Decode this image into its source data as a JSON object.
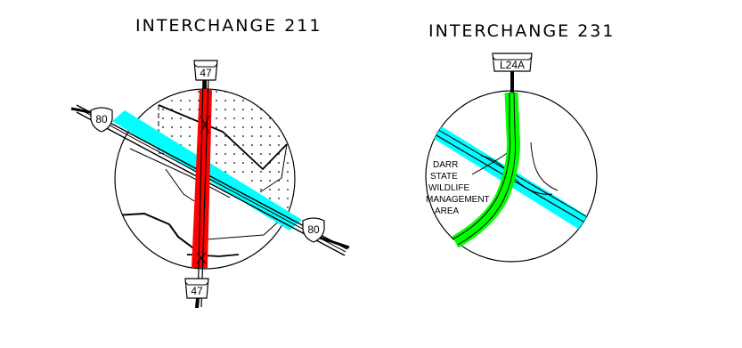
{
  "interchange_211": {
    "title": "INTERCHANGE 211",
    "route_north_label": "47",
    "route_south_label": "47",
    "interstate_west_label": "80",
    "interstate_east_label": "80"
  },
  "interchange_231": {
    "title": "INTERCHANGE 231",
    "route_north_label": "L24A",
    "area_label_lines": [
      "DARR",
      "STATE",
      "WILDLIFE",
      "MANAGEMENT",
      "AREA"
    ]
  },
  "colors": {
    "highlight_red": "#ff0000",
    "highlight_green": "#00ff00",
    "interstate_cyan": "#00ffff",
    "line": "#000000"
  }
}
